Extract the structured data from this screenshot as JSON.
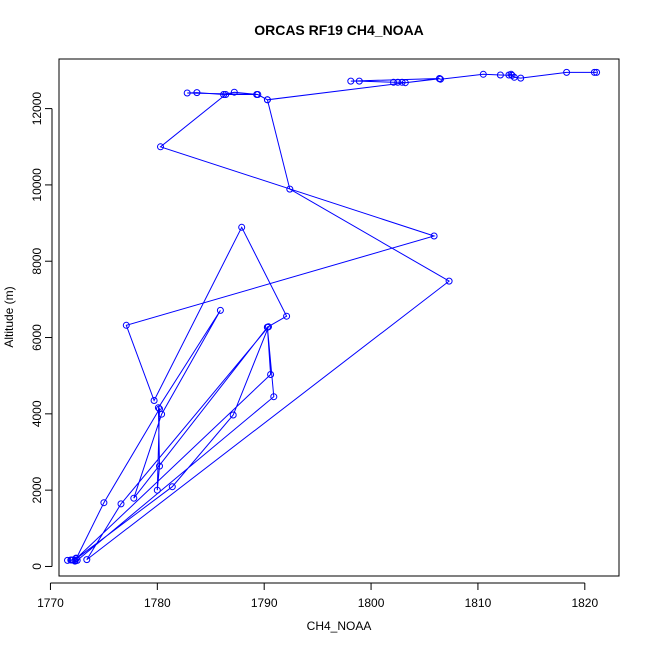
{
  "chart_data": {
    "type": "line",
    "title": "ORCAS RF19 CH4_NOAA",
    "xlabel": "CH4_NOAA",
    "ylabel": "Altitude (m)",
    "xlim": [
      1770.8,
      1823.2
    ],
    "ylim": [
      -250,
      13300
    ],
    "xticks": [
      1770,
      1780,
      1790,
      1800,
      1810,
      1820
    ],
    "yticks": [
      0,
      2000,
      4000,
      6000,
      8000,
      10000,
      12000
    ],
    "grid": false,
    "marker": "open-circle",
    "line_color": "#0000ff",
    "series": [
      {
        "points": [
          [
            1820.9,
            12950
          ],
          [
            1821.1,
            12950
          ],
          [
            1818.3,
            12950
          ],
          [
            1814.0,
            12800
          ],
          [
            1813.4,
            12820
          ],
          [
            1813.1,
            12900
          ],
          [
            1812.9,
            12880
          ],
          [
            1813.2,
            12870
          ],
          [
            1812.1,
            12880
          ],
          [
            1810.5,
            12900
          ],
          [
            1806.5,
            12770
          ],
          [
            1806.4,
            12780
          ],
          [
            1803.2,
            12680
          ],
          [
            1802.9,
            12690
          ],
          [
            1802.5,
            12690
          ],
          [
            1802.1,
            12690
          ],
          [
            1798.9,
            12720
          ],
          [
            1798.1,
            12720
          ],
          [
            1806.4,
            12790
          ],
          [
            1790.3,
            12230
          ],
          [
            1789.4,
            12370
          ],
          [
            1787.2,
            12430
          ],
          [
            1786.2,
            12370
          ],
          [
            1783.7,
            12420
          ],
          [
            1782.8,
            12410
          ],
          [
            1789.3,
            12370
          ],
          [
            1786.4,
            12370
          ],
          [
            1780.3,
            11000
          ],
          [
            1805.9,
            8660
          ],
          [
            1777.1,
            6320
          ],
          [
            1779.7,
            4350
          ],
          [
            1787.9,
            8890
          ],
          [
            1792.1,
            6560
          ],
          [
            1790.3,
            6270
          ],
          [
            1790.9,
            4450
          ],
          [
            1772.5,
            160
          ],
          [
            1772.4,
            220
          ],
          [
            1772.0,
            170
          ],
          [
            1771.9,
            170
          ],
          [
            1771.6,
            160
          ],
          [
            1772.1,
            170
          ],
          [
            1772.3,
            160
          ],
          [
            1772.3,
            140
          ],
          [
            1775.0,
            1670
          ],
          [
            1780.2,
            4130
          ],
          [
            1780.0,
            2000
          ],
          [
            1780.2,
            2630
          ],
          [
            1780.1,
            4160
          ],
          [
            1785.9,
            6710
          ],
          [
            1780.4,
            3990
          ],
          [
            1777.8,
            1790
          ],
          [
            1790.3,
            6270
          ],
          [
            1790.6,
            5030
          ],
          [
            1772.4,
            200
          ],
          [
            1781.4,
            2090
          ],
          [
            1787.1,
            3970
          ],
          [
            1790.4,
            6280
          ],
          [
            1776.6,
            1640
          ],
          [
            1773.4,
            180
          ],
          [
            1807.3,
            7480
          ],
          [
            1792.4,
            9890
          ],
          [
            1790.3,
            12230
          ]
        ]
      }
    ]
  }
}
